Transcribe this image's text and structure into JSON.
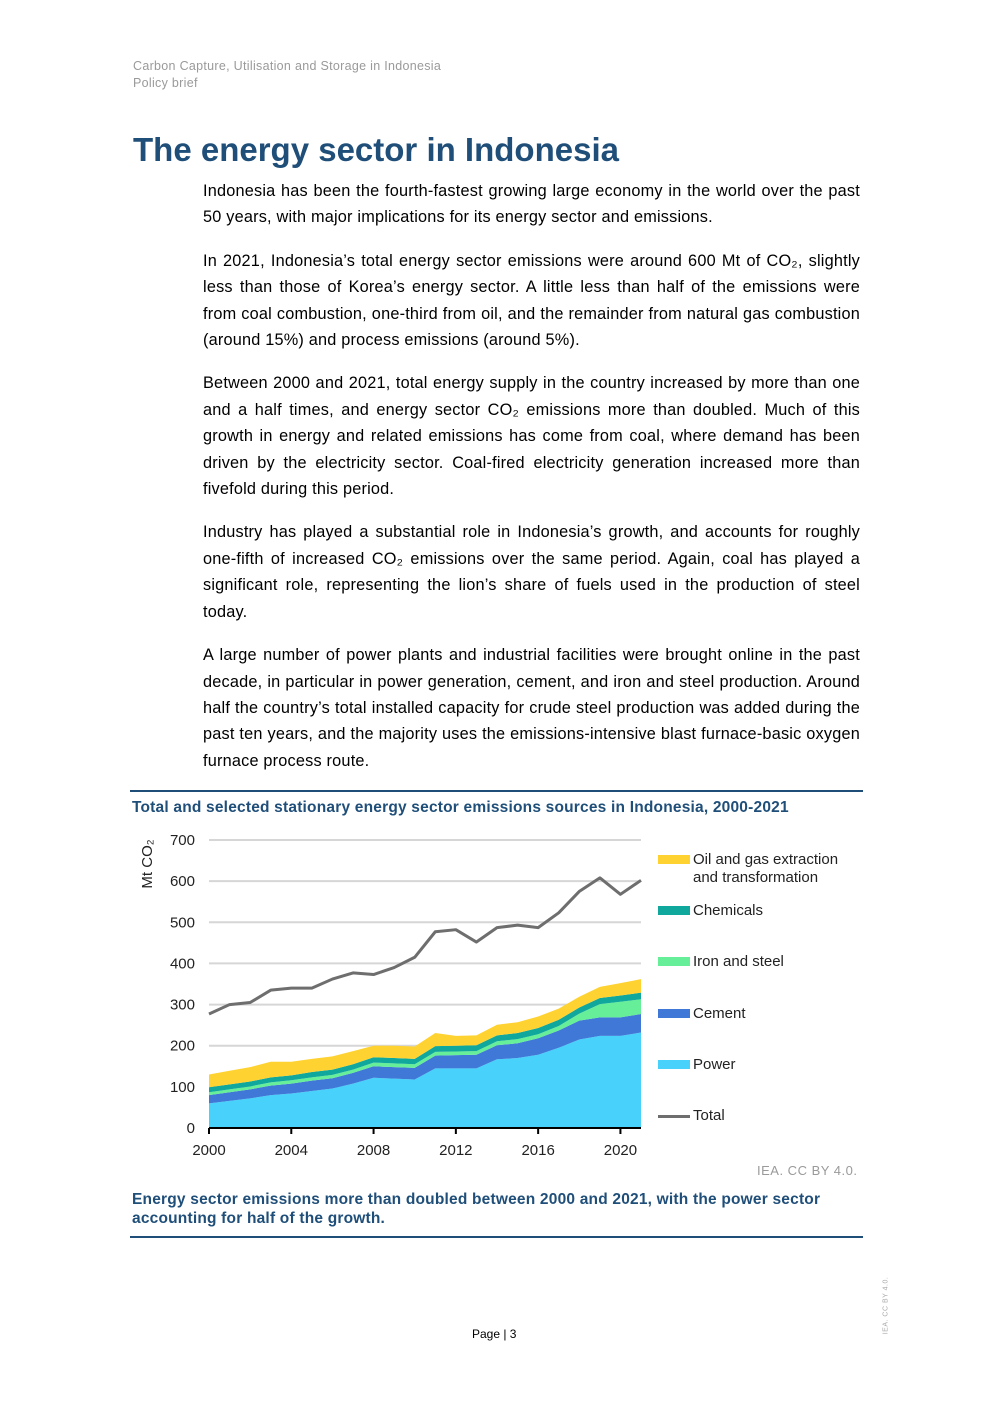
{
  "header": {
    "line1": "Carbon Capture, Utilisation and Storage in Indonesia",
    "line2": "Policy brief"
  },
  "title": "The energy sector in Indonesia",
  "paragraphs": [
    "Indonesia has been the fourth-fastest growing large economy in the world over the past 50 years, with major implications for its energy sector and emissions.",
    "In 2021, Indonesia’s total energy sector emissions were around 600 Mt of CO₂, slightly less than those of Korea’s energy sector. A little less than half of the emissions were from coal combustion, one-third from oil, and the remainder from natural gas combustion (around 15%) and process emissions (around 5%).",
    "Between 2000 and 2021, total energy supply in the country increased by more than one and a half times, and energy sector CO₂ emissions more than doubled. Much of this growth in energy and related emissions has come from coal, where demand has been driven by the electricity sector. Coal-fired electricity generation increased more than fivefold during this period.",
    "Industry has played a substantial role in Indonesia’s growth, and accounts for roughly one-fifth of increased CO₂ emissions over the same period. Again, coal has played a significant role, representing the lion’s share of fuels used in the production of steel today.",
    "A large number of power plants and industrial facilities were brought online in the past decade, in particular in power generation, cement, and iron and steel production. Around half the country’s total installed capacity for crude steel production was added during the past ten years, and the majority uses the emissions-intensive blast furnace-basic oxygen furnace process route."
  ],
  "chart_data": {
    "type": "area",
    "title": "Total and selected stationary energy sector emissions sources in Indonesia, 2000-2021",
    "ylabel": "Mt CO₂",
    "xlabel": "",
    "ylim": [
      0,
      700
    ],
    "xlim": [
      2000,
      2021
    ],
    "yticks": [
      "0",
      "100",
      "200",
      "300",
      "400",
      "500",
      "600",
      "700"
    ],
    "xticks": [
      "2000",
      "2004",
      "2008",
      "2012",
      "2016",
      "2020"
    ],
    "grid": true,
    "legend_placement": "right",
    "stacked": true,
    "x": [
      2000,
      2001,
      2002,
      2003,
      2004,
      2005,
      2006,
      2007,
      2008,
      2009,
      2010,
      2011,
      2012,
      2013,
      2014,
      2015,
      2016,
      2017,
      2018,
      2019,
      2020,
      2021
    ],
    "series": [
      {
        "name": "Power",
        "type": "area",
        "color": "#47d1fb",
        "values": [
          60,
          66,
          72,
          80,
          84,
          90,
          96,
          108,
          122,
          120,
          118,
          145,
          145,
          145,
          167,
          170,
          178,
          195,
          215,
          224,
          224,
          232
        ]
      },
      {
        "name": "Cement",
        "type": "area",
        "color": "#3f78d6",
        "values": [
          20,
          21,
          22,
          23,
          24,
          25,
          25,
          26,
          28,
          28,
          28,
          31,
          32,
          33,
          34,
          36,
          40,
          42,
          46,
          45,
          45,
          45
        ]
      },
      {
        "name": "Iron and steel",
        "type": "area",
        "color": "#66ee99",
        "values": [
          7,
          7,
          7,
          8,
          8,
          8,
          8,
          8,
          9,
          9,
          9,
          9,
          9,
          9,
          10,
          10,
          10,
          11,
          17,
          32,
          38,
          36
        ]
      },
      {
        "name": "Chemicals",
        "type": "area",
        "color": "#10a79d",
        "values": [
          12,
          12,
          12,
          12,
          12,
          13,
          13,
          13,
          13,
          13,
          13,
          14,
          14,
          14,
          14,
          15,
          15,
          15,
          15,
          15,
          15,
          16
        ]
      },
      {
        "name": "Oil and gas extraction and transformation",
        "type": "area",
        "color": "#fed230",
        "values": [
          31,
          33,
          35,
          38,
          33,
          32,
          32,
          32,
          28,
          30,
          30,
          32,
          24,
          24,
          26,
          26,
          28,
          27,
          26,
          27,
          30,
          33
        ]
      },
      {
        "name": "Total",
        "type": "line",
        "color": "#6e6e6e",
        "values": [
          277,
          300,
          305,
          335,
          340,
          340,
          362,
          377,
          373,
          390,
          415,
          477,
          482,
          452,
          487,
          493,
          487,
          523,
          575,
          608,
          568,
          602
        ]
      }
    ],
    "legend_order": [
      "Oil and gas extraction",
      "and transformation",
      "Chemicals",
      "Iron and steel",
      "Cement",
      "Power",
      "Total"
    ],
    "credit": "IEA. CC BY 4.0."
  },
  "caption": "Energy sector emissions more than doubled between 2000 and 2021, with the power sector accounting for half of the growth.",
  "footer": {
    "page_label": "Page | 3",
    "side_text": "IEA. CC BY 4.0."
  }
}
